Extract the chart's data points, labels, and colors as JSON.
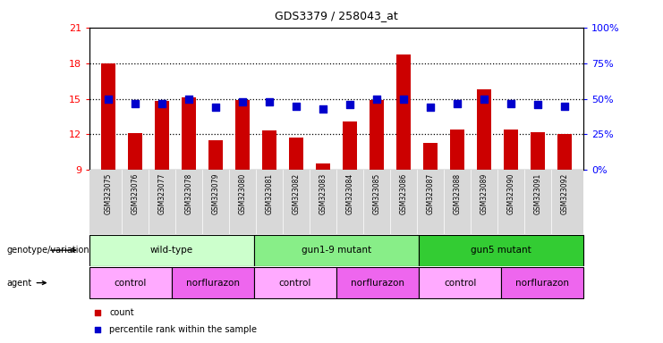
{
  "title": "GDS3379 / 258043_at",
  "samples": [
    "GSM323075",
    "GSM323076",
    "GSM323077",
    "GSM323078",
    "GSM323079",
    "GSM323080",
    "GSM323081",
    "GSM323082",
    "GSM323083",
    "GSM323084",
    "GSM323085",
    "GSM323086",
    "GSM323087",
    "GSM323088",
    "GSM323089",
    "GSM323090",
    "GSM323091",
    "GSM323092"
  ],
  "bar_values": [
    18.0,
    12.1,
    14.8,
    15.1,
    11.5,
    14.9,
    12.3,
    11.7,
    9.5,
    13.1,
    14.9,
    18.8,
    11.3,
    12.4,
    15.8,
    12.4,
    12.2,
    12.0
  ],
  "dot_values": [
    50,
    47,
    47,
    50,
    44,
    48,
    48,
    45,
    43,
    46,
    50,
    50,
    44,
    47,
    50,
    47,
    46,
    45
  ],
  "ylim_left": [
    9,
    21
  ],
  "ylim_right": [
    0,
    100
  ],
  "yticks_left": [
    9,
    12,
    15,
    18,
    21
  ],
  "yticks_right": [
    0,
    25,
    50,
    75,
    100
  ],
  "bar_color": "#cc0000",
  "dot_color": "#0000cc",
  "genotype_groups": [
    {
      "label": "wild-type",
      "start": 0,
      "end": 5,
      "color": "#ccffcc"
    },
    {
      "label": "gun1-9 mutant",
      "start": 6,
      "end": 11,
      "color": "#88ee88"
    },
    {
      "label": "gun5 mutant",
      "start": 12,
      "end": 17,
      "color": "#33cc33"
    }
  ],
  "agent_groups": [
    {
      "label": "control",
      "start": 0,
      "end": 2,
      "color": "#ffaaff"
    },
    {
      "label": "norflurazon",
      "start": 3,
      "end": 5,
      "color": "#ee66ee"
    },
    {
      "label": "control",
      "start": 6,
      "end": 8,
      "color": "#ffaaff"
    },
    {
      "label": "norflurazon",
      "start": 9,
      "end": 11,
      "color": "#ee66ee"
    },
    {
      "label": "control",
      "start": 12,
      "end": 14,
      "color": "#ffaaff"
    },
    {
      "label": "norflurazon",
      "start": 15,
      "end": 17,
      "color": "#ee66ee"
    }
  ]
}
